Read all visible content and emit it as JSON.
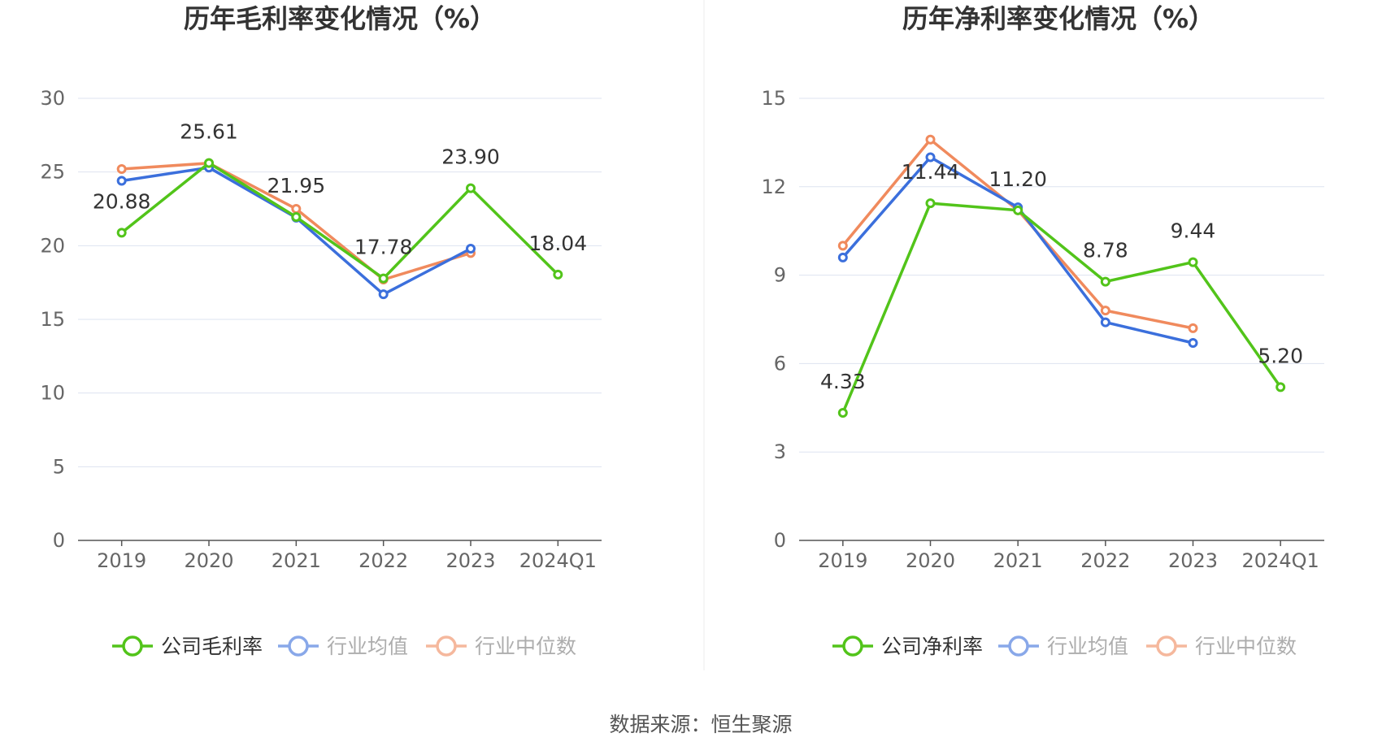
{
  "source_text": "数据来源：恒生聚源",
  "colors": {
    "company": "#52c41a",
    "industry_avg": "#3b6fdc",
    "industry_median": "#f08a5d",
    "grid": "#dde3f0",
    "axis": "#555555",
    "tick_text": "#666666",
    "label_text": "#333333",
    "divider": "#eeeeee"
  },
  "chart_data": [
    {
      "type": "line",
      "title": "历年毛利率变化情况（%）",
      "categories": [
        "2019",
        "2020",
        "2021",
        "2022",
        "2023",
        "2024Q1"
      ],
      "ylim": [
        0,
        30
      ],
      "yticks": [
        0,
        5,
        10,
        15,
        20,
        25,
        30
      ],
      "grid": true,
      "legend_position": "bottom",
      "series": [
        {
          "name": "公司毛利率",
          "color_key": "company",
          "values": [
            20.88,
            25.61,
            21.95,
            17.78,
            23.9,
            18.04
          ],
          "labels": [
            "20.88",
            "25.61",
            "21.95",
            "17.78",
            "23.90",
            "18.04"
          ]
        },
        {
          "name": "行业均值",
          "color_key": "industry_avg",
          "values": [
            24.4,
            25.3,
            21.9,
            16.7,
            19.8,
            null
          ]
        },
        {
          "name": "行业中位数",
          "color_key": "industry_median",
          "values": [
            25.2,
            25.6,
            22.5,
            17.7,
            19.5,
            null
          ]
        }
      ]
    },
    {
      "type": "line",
      "title": "历年净利率变化情况（%）",
      "categories": [
        "2019",
        "2020",
        "2021",
        "2022",
        "2023",
        "2024Q1"
      ],
      "ylim": [
        0,
        15
      ],
      "yticks": [
        0,
        3,
        6,
        9,
        12,
        15
      ],
      "grid": true,
      "legend_position": "bottom",
      "series": [
        {
          "name": "公司净利率",
          "color_key": "company",
          "values": [
            4.33,
            11.44,
            11.2,
            8.78,
            9.44,
            5.2
          ],
          "labels": [
            "4.33",
            "11.44",
            "11.20",
            "8.78",
            "9.44",
            "5.20"
          ]
        },
        {
          "name": "行业均值",
          "color_key": "industry_avg",
          "values": [
            9.6,
            13.0,
            11.3,
            7.4,
            6.7,
            null
          ]
        },
        {
          "name": "行业中位数",
          "color_key": "industry_median",
          "values": [
            10.0,
            13.6,
            11.2,
            7.8,
            7.2,
            null
          ]
        }
      ]
    }
  ]
}
